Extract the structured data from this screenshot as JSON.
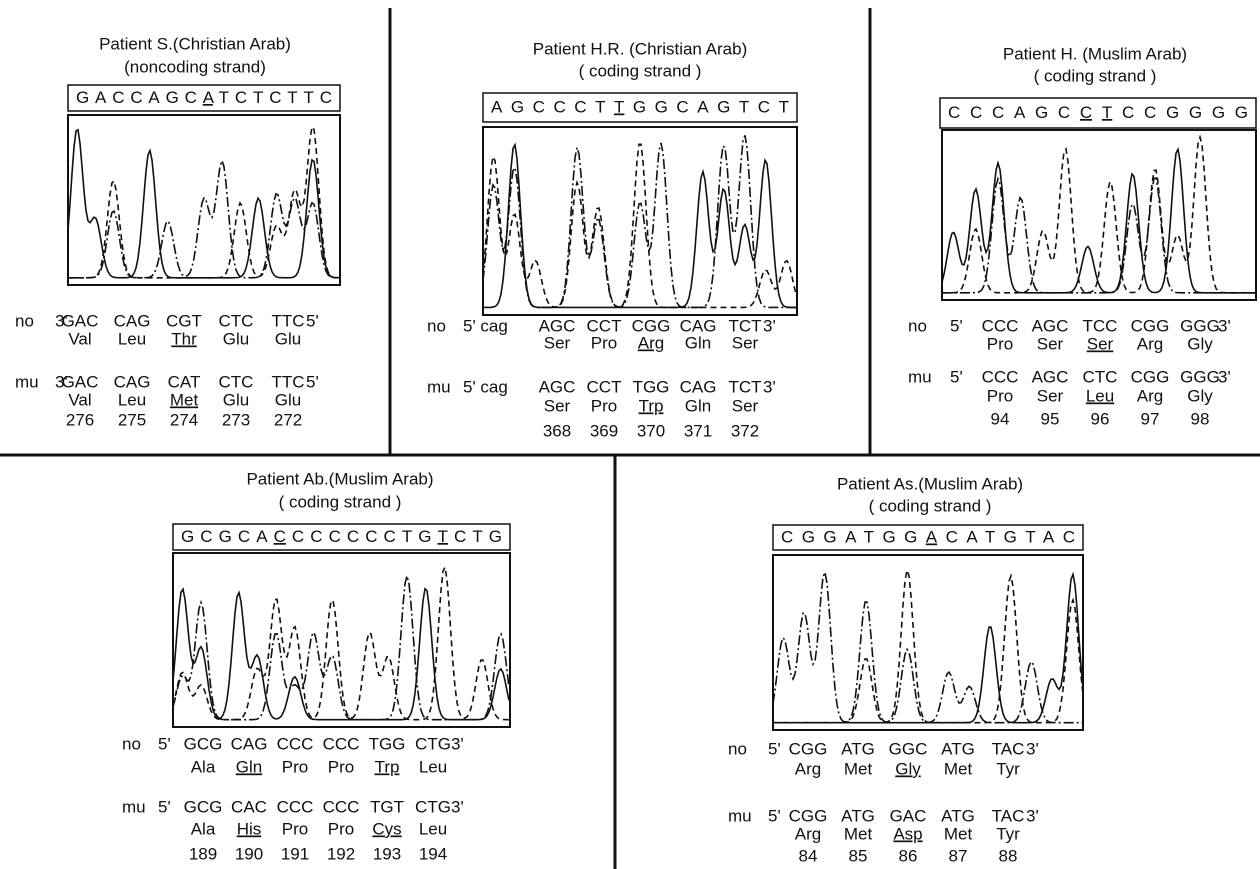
{
  "panels": [
    {
      "title": "Patient S.(Christian Arab)",
      "strand": "(noncoding strand)",
      "sequence": [
        "GACCAGC",
        "A",
        "TCTCTTC"
      ],
      "normal": {
        "label": "no",
        "start": "3'",
        "codons": [
          "GAC",
          "CAG",
          "CGT",
          "CTC",
          "TTC"
        ],
        "end": "5'",
        "amino_acids": [
          "Val",
          "Leu",
          "Thr",
          "Glu",
          "Glu"
        ]
      },
      "mutant": {
        "label": "mu",
        "start": "3'",
        "codons": [
          "GAC",
          "CAG",
          "CAT",
          "CTC",
          "TTC"
        ],
        "end": "5'",
        "amino_acids": [
          "Val",
          "Leu",
          "Met",
          "Glu",
          "Glu"
        ],
        "positions": [
          276,
          275,
          274,
          273,
          272
        ]
      }
    },
    {
      "title": "Patient H.R. (Christian Arab)",
      "strand": "( coding strand )",
      "sequence": [
        "AGCCCT",
        "T",
        "GGCAGTCT"
      ],
      "normal": {
        "label": "no",
        "start": "5' cag",
        "codons": [
          "AGC",
          "CCT",
          "CGG",
          "CAG",
          "TCT"
        ],
        "end": "3'",
        "amino_acids": [
          "Ser",
          "Pro",
          "Arg",
          "Gln",
          "Ser"
        ]
      },
      "mutant": {
        "label": "mu",
        "start": "5' cag",
        "codons": [
          "AGC",
          "CCT",
          "TGG",
          "CAG",
          "TCT"
        ],
        "end": "3'",
        "amino_acids": [
          "Ser",
          "Pro",
          "Trp",
          "Gln",
          "Ser"
        ],
        "positions": [
          368,
          369,
          370,
          371,
          372
        ]
      }
    },
    {
      "title": "Patient H. (Muslim Arab)",
      "strand": "( coding strand )",
      "sequence": [
        "CCCAGC",
        "CT",
        "CCGGGG"
      ],
      "normal": {
        "label": "no",
        "start": "5'",
        "codons": [
          "CCC",
          "AGC",
          "TCC",
          "CGG",
          "GGG"
        ],
        "end": "3'",
        "amino_acids": [
          "Pro",
          "Ser",
          "Ser",
          "Arg",
          "Gly"
        ]
      },
      "mutant": {
        "label": "mu",
        "start": "5'",
        "codons": [
          "CCC",
          "AGC",
          "CTC",
          "CGG",
          "GGG"
        ],
        "end": "3'",
        "amino_acids": [
          "Pro",
          "Ser",
          "Leu",
          "Arg",
          "Gly"
        ],
        "positions": [
          94,
          95,
          96,
          97,
          98
        ]
      }
    },
    {
      "title": "Patient Ab.(Muslim Arab)",
      "strand": "( coding strand )",
      "sequence": [
        "GCGCA",
        "C",
        "CCCCCCTG",
        "T",
        "CTG"
      ],
      "normal": {
        "label": "no",
        "start": "5'",
        "codons": [
          "GCG",
          "CAG",
          "CCC",
          "CCC",
          "TGG",
          "CTG"
        ],
        "end": "3'",
        "amino_acids": [
          "Ala",
          "Gln",
          "Pro",
          "Pro",
          "Trp",
          "Leu"
        ]
      },
      "mutant": {
        "label": "mu",
        "start": "5'",
        "codons": [
          "GCG",
          "CAC",
          "CCC",
          "CCC",
          "TGT",
          "CTG"
        ],
        "end": "3'",
        "amino_acids": [
          "Ala",
          "His",
          "Pro",
          "Pro",
          "Cys",
          "Leu"
        ],
        "positions": [
          189,
          190,
          191,
          192,
          193,
          194
        ]
      }
    },
    {
      "title": "Patient As.(Muslim Arab)",
      "strand": "( coding strand )",
      "sequence": [
        "CGGATGG",
        "A",
        "CATGTAC"
      ],
      "normal": {
        "label": "no",
        "start": "5'",
        "codons": [
          "CGG",
          "ATG",
          "GGC",
          "ATG",
          "TAC"
        ],
        "end": "3'",
        "amino_acids": [
          "Arg",
          "Met",
          "Gly",
          "Met",
          "Tyr"
        ]
      },
      "mutant": {
        "label": "mu",
        "start": "5'",
        "codons": [
          "CGG",
          "ATG",
          "GAC",
          "ATG",
          "TAC"
        ],
        "end": "3'",
        "amino_acids": [
          "Arg",
          "Met",
          "Asp",
          "Met",
          "Tyr"
        ],
        "positions": [
          84,
          85,
          86,
          87,
          88
        ]
      }
    }
  ]
}
